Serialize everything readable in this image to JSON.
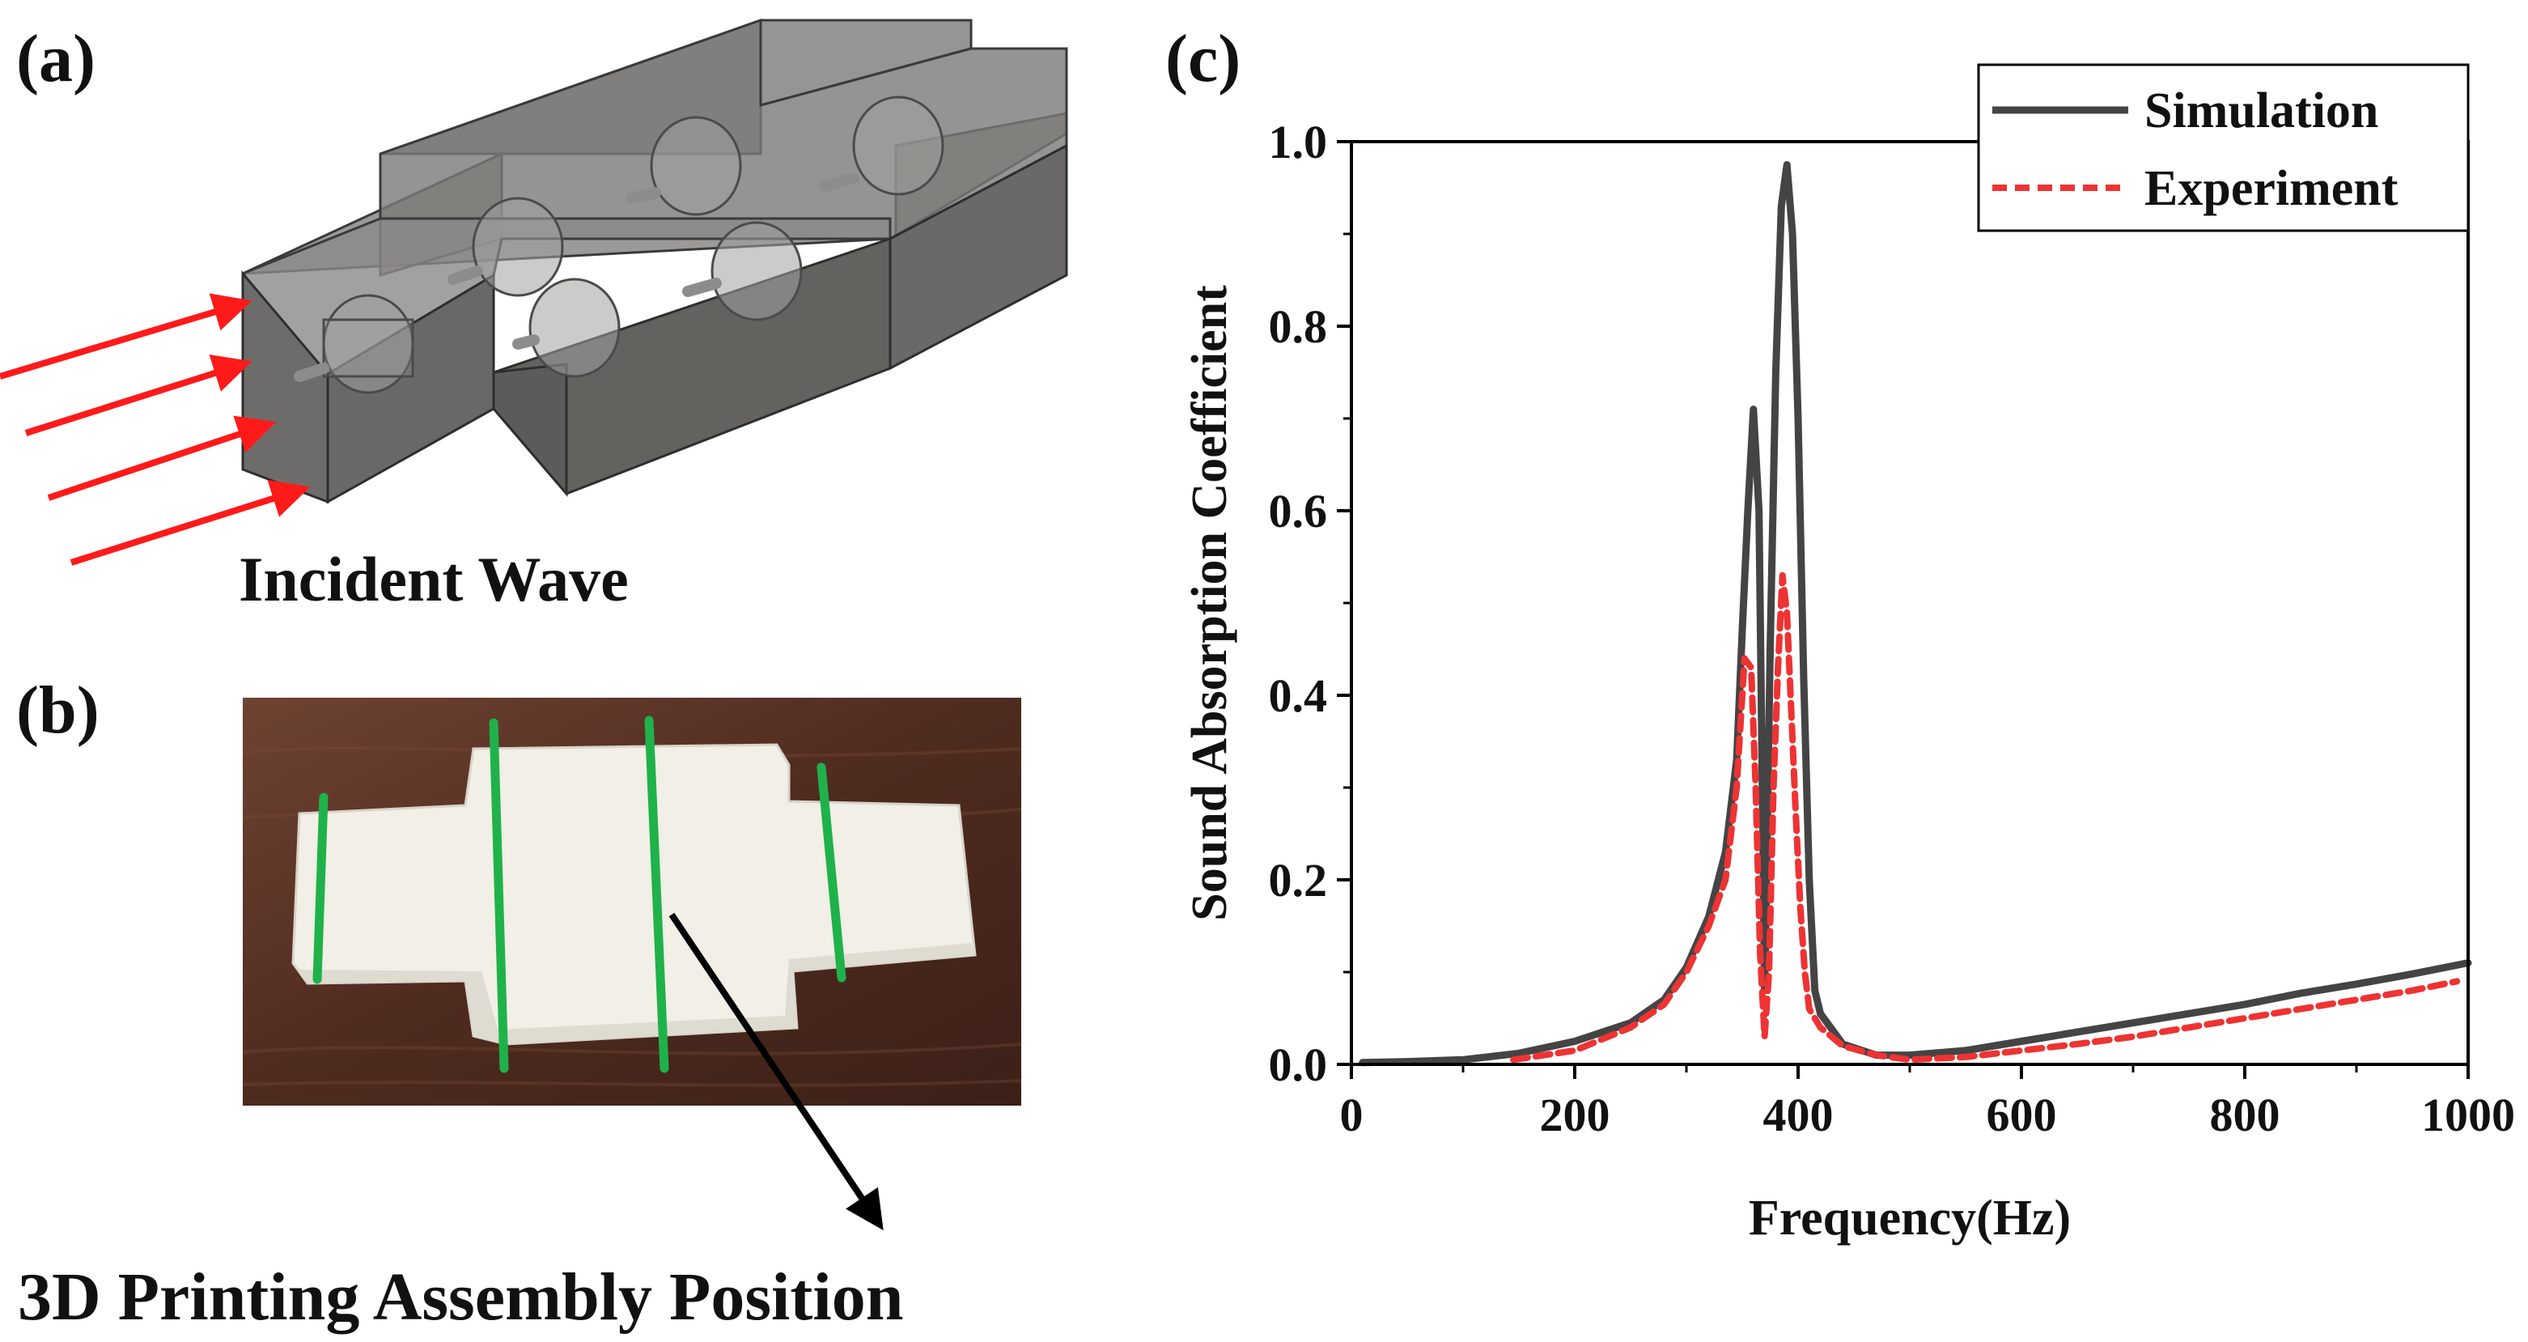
{
  "panels": {
    "a": {
      "label": "(a)",
      "caption": "Incident Wave"
    },
    "b": {
      "label": "(b)",
      "caption": "3D Printing Assembly Position"
    },
    "c": {
      "label": "(c)"
    }
  },
  "colors": {
    "simulation": "#444444",
    "experiment": "#ee3333",
    "arrow_red": "#ff1a1a",
    "assembly_line_green": "#1fb24a",
    "photo_background": "#5a3424",
    "printed_part": "#f2f0e8",
    "model_body": "#6d6b69"
  },
  "chart_data": {
    "type": "line",
    "xlabel": "Frequency(Hz)",
    "ylabel": "Sound Absorption Coefficient",
    "xlim": [
      0,
      1000
    ],
    "ylim": [
      0,
      1.0
    ],
    "x_ticks": [
      0,
      200,
      400,
      600,
      800,
      1000
    ],
    "x_tick_labels": [
      "0",
      "200",
      "400",
      "600",
      "800",
      "1000"
    ],
    "y_ticks": [
      0.0,
      0.2,
      0.4,
      0.6,
      0.8,
      1.0
    ],
    "y_tick_labels": [
      "0.0",
      "0.2",
      "0.4",
      "0.6",
      "0.8",
      "1.0"
    ],
    "grid": false,
    "legend_position": "top-right",
    "series": [
      {
        "name": "Simulation",
        "style": "solid",
        "color": "#444444",
        "x": [
          10,
          50,
          100,
          150,
          200,
          250,
          280,
          300,
          320,
          335,
          345,
          350,
          355,
          360,
          365,
          368,
          370,
          372,
          375,
          380,
          385,
          390,
          395,
          400,
          405,
          410,
          415,
          420,
          440,
          470,
          500,
          550,
          600,
          650,
          700,
          750,
          800,
          850,
          900,
          950,
          1000
        ],
        "y": [
          0.002,
          0.003,
          0.005,
          0.012,
          0.025,
          0.045,
          0.07,
          0.105,
          0.16,
          0.23,
          0.33,
          0.47,
          0.6,
          0.71,
          0.6,
          0.3,
          0.08,
          0.22,
          0.45,
          0.75,
          0.93,
          0.975,
          0.9,
          0.7,
          0.42,
          0.2,
          0.08,
          0.055,
          0.022,
          0.01,
          0.01,
          0.015,
          0.025,
          0.035,
          0.045,
          0.055,
          0.065,
          0.077,
          0.087,
          0.098,
          0.11
        ]
      },
      {
        "name": "Experiment",
        "style": "dashed",
        "color": "#ee3333",
        "x": [
          145,
          200,
          250,
          280,
          300,
          320,
          335,
          345,
          352,
          358,
          362,
          366,
          370,
          374,
          378,
          382,
          386,
          390,
          394,
          398,
          402,
          406,
          410,
          420,
          440,
          470,
          500,
          550,
          600,
          650,
          700,
          750,
          800,
          850,
          900,
          950,
          990
        ],
        "y": [
          0.005,
          0.015,
          0.04,
          0.065,
          0.1,
          0.15,
          0.2,
          0.3,
          0.44,
          0.43,
          0.3,
          0.12,
          0.03,
          0.1,
          0.3,
          0.43,
          0.53,
          0.49,
          0.38,
          0.27,
          0.17,
          0.1,
          0.06,
          0.04,
          0.02,
          0.01,
          0.005,
          0.008,
          0.015,
          0.022,
          0.03,
          0.04,
          0.05,
          0.06,
          0.07,
          0.08,
          0.09
        ]
      }
    ]
  }
}
